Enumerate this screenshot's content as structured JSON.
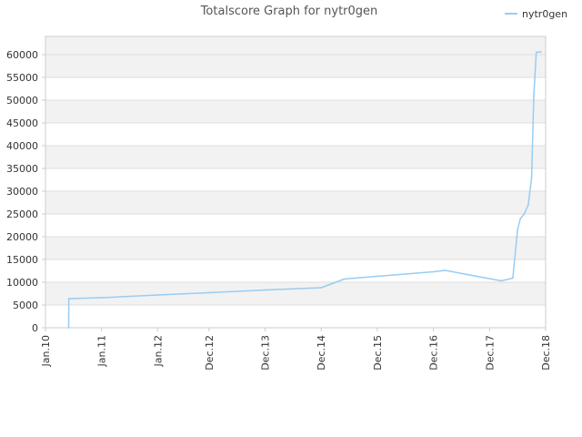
{
  "chart_data": {
    "type": "line",
    "title": "Totalscore Graph for nytr0gen",
    "xlabel": "",
    "ylabel": "",
    "legend": "top-right",
    "grid": true,
    "colors": {
      "series": "#99ccf3",
      "band": "#f2f2f2",
      "grid": "#dddddd",
      "axis": "#cccccc"
    },
    "ylim": [
      0,
      64000
    ],
    "y_ticks": [
      0,
      5000,
      10000,
      15000,
      20000,
      25000,
      30000,
      35000,
      40000,
      45000,
      50000,
      55000,
      60000
    ],
    "x_ticks": [
      {
        "label": "Jan.10",
        "date": "2010-01-01"
      },
      {
        "label": "Jan.11",
        "date": "2011-01-01"
      },
      {
        "label": "Jan.12",
        "date": "2012-01-01"
      },
      {
        "label": "Dec.12",
        "date": "2012-12-01"
      },
      {
        "label": "Dec.13",
        "date": "2013-12-01"
      },
      {
        "label": "Dec.14",
        "date": "2014-12-01"
      },
      {
        "label": "Dec.15",
        "date": "2015-12-01"
      },
      {
        "label": "Dec.16",
        "date": "2016-12-01"
      },
      {
        "label": "Dec.17",
        "date": "2017-12-01"
      },
      {
        "label": "Dec.18",
        "date": "2018-12-01"
      }
    ],
    "xlim": [
      "2010-01-01",
      "2018-12-01"
    ],
    "series": [
      {
        "name": "nytr0gen",
        "points": [
          {
            "x": "2010-06-01",
            "y": 0
          },
          {
            "x": "2010-06-02",
            "y": 6400
          },
          {
            "x": "2011-01-01",
            "y": 6600
          },
          {
            "x": "2012-01-01",
            "y": 7200
          },
          {
            "x": "2012-12-01",
            "y": 7700
          },
          {
            "x": "2013-12-01",
            "y": 8300
          },
          {
            "x": "2014-12-01",
            "y": 8800
          },
          {
            "x": "2015-05-01",
            "y": 10700
          },
          {
            "x": "2015-12-01",
            "y": 11300
          },
          {
            "x": "2016-12-01",
            "y": 12300
          },
          {
            "x": "2017-02-15",
            "y": 12600
          },
          {
            "x": "2018-02-15",
            "y": 10300
          },
          {
            "x": "2018-05-01",
            "y": 10900
          },
          {
            "x": "2018-06-01",
            "y": 21500
          },
          {
            "x": "2018-06-20",
            "y": 24000
          },
          {
            "x": "2018-07-15",
            "y": 25000
          },
          {
            "x": "2018-08-10",
            "y": 27000
          },
          {
            "x": "2018-09-01",
            "y": 33000
          },
          {
            "x": "2018-09-15",
            "y": 51000
          },
          {
            "x": "2018-10-01",
            "y": 60500
          },
          {
            "x": "2018-11-01",
            "y": 60600
          }
        ]
      }
    ]
  }
}
